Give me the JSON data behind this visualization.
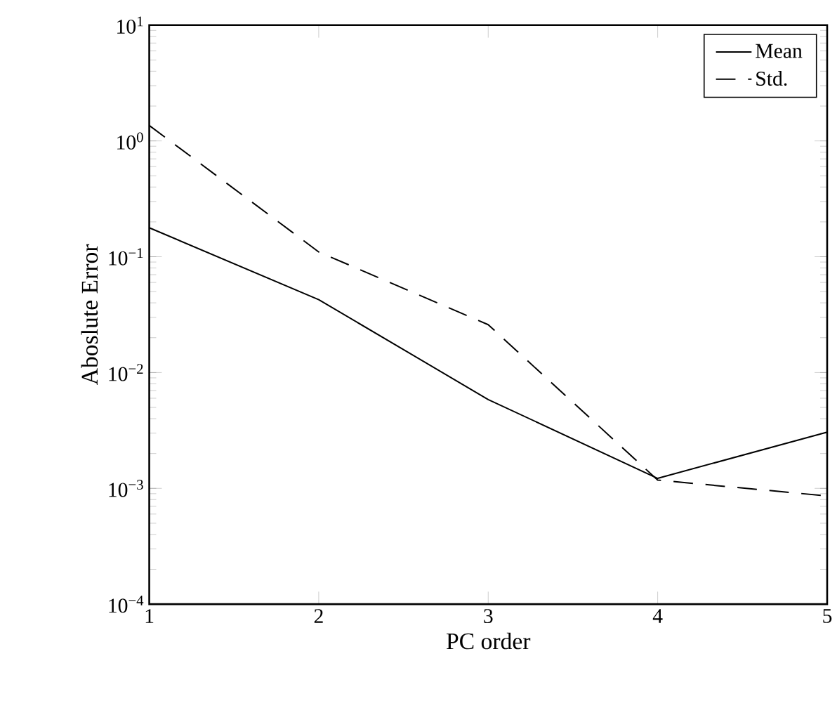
{
  "chart_data": {
    "type": "line",
    "xlabel": "PC order",
    "ylabel": "Aboslute Error",
    "x": [
      1,
      2,
      3,
      4,
      5
    ],
    "series": [
      {
        "name": "Mean",
        "color": "#000000",
        "line_style": "solid",
        "values": [
          0.178,
          0.0426,
          0.00585,
          0.00122,
          0.00306
        ]
      },
      {
        "name": "Std.",
        "color": "#000000",
        "line_style": "dashed",
        "values": [
          1.36,
          0.11,
          0.0259,
          0.00118,
          0.00086
        ]
      }
    ],
    "log": "y",
    "xlim": [
      1,
      5
    ],
    "ylim": [
      0.0001,
      10
    ],
    "xticks": [
      1,
      2,
      3,
      4,
      5
    ],
    "yticks": [
      {
        "value": 0.0001,
        "label": "10$^{−4}$"
      },
      {
        "value": 0.001,
        "label": "10$^{−3}$"
      },
      {
        "value": 0.01,
        "label": "10$^{−2}$"
      },
      {
        "value": 0.1,
        "label": "10$^{−1}$"
      },
      {
        "value": 1,
        "label": "10$^{0}$"
      },
      {
        "value": 10,
        "label": "10$^{1}$"
      }
    ],
    "legend": "top right",
    "grid": false,
    "marker": "none"
  }
}
